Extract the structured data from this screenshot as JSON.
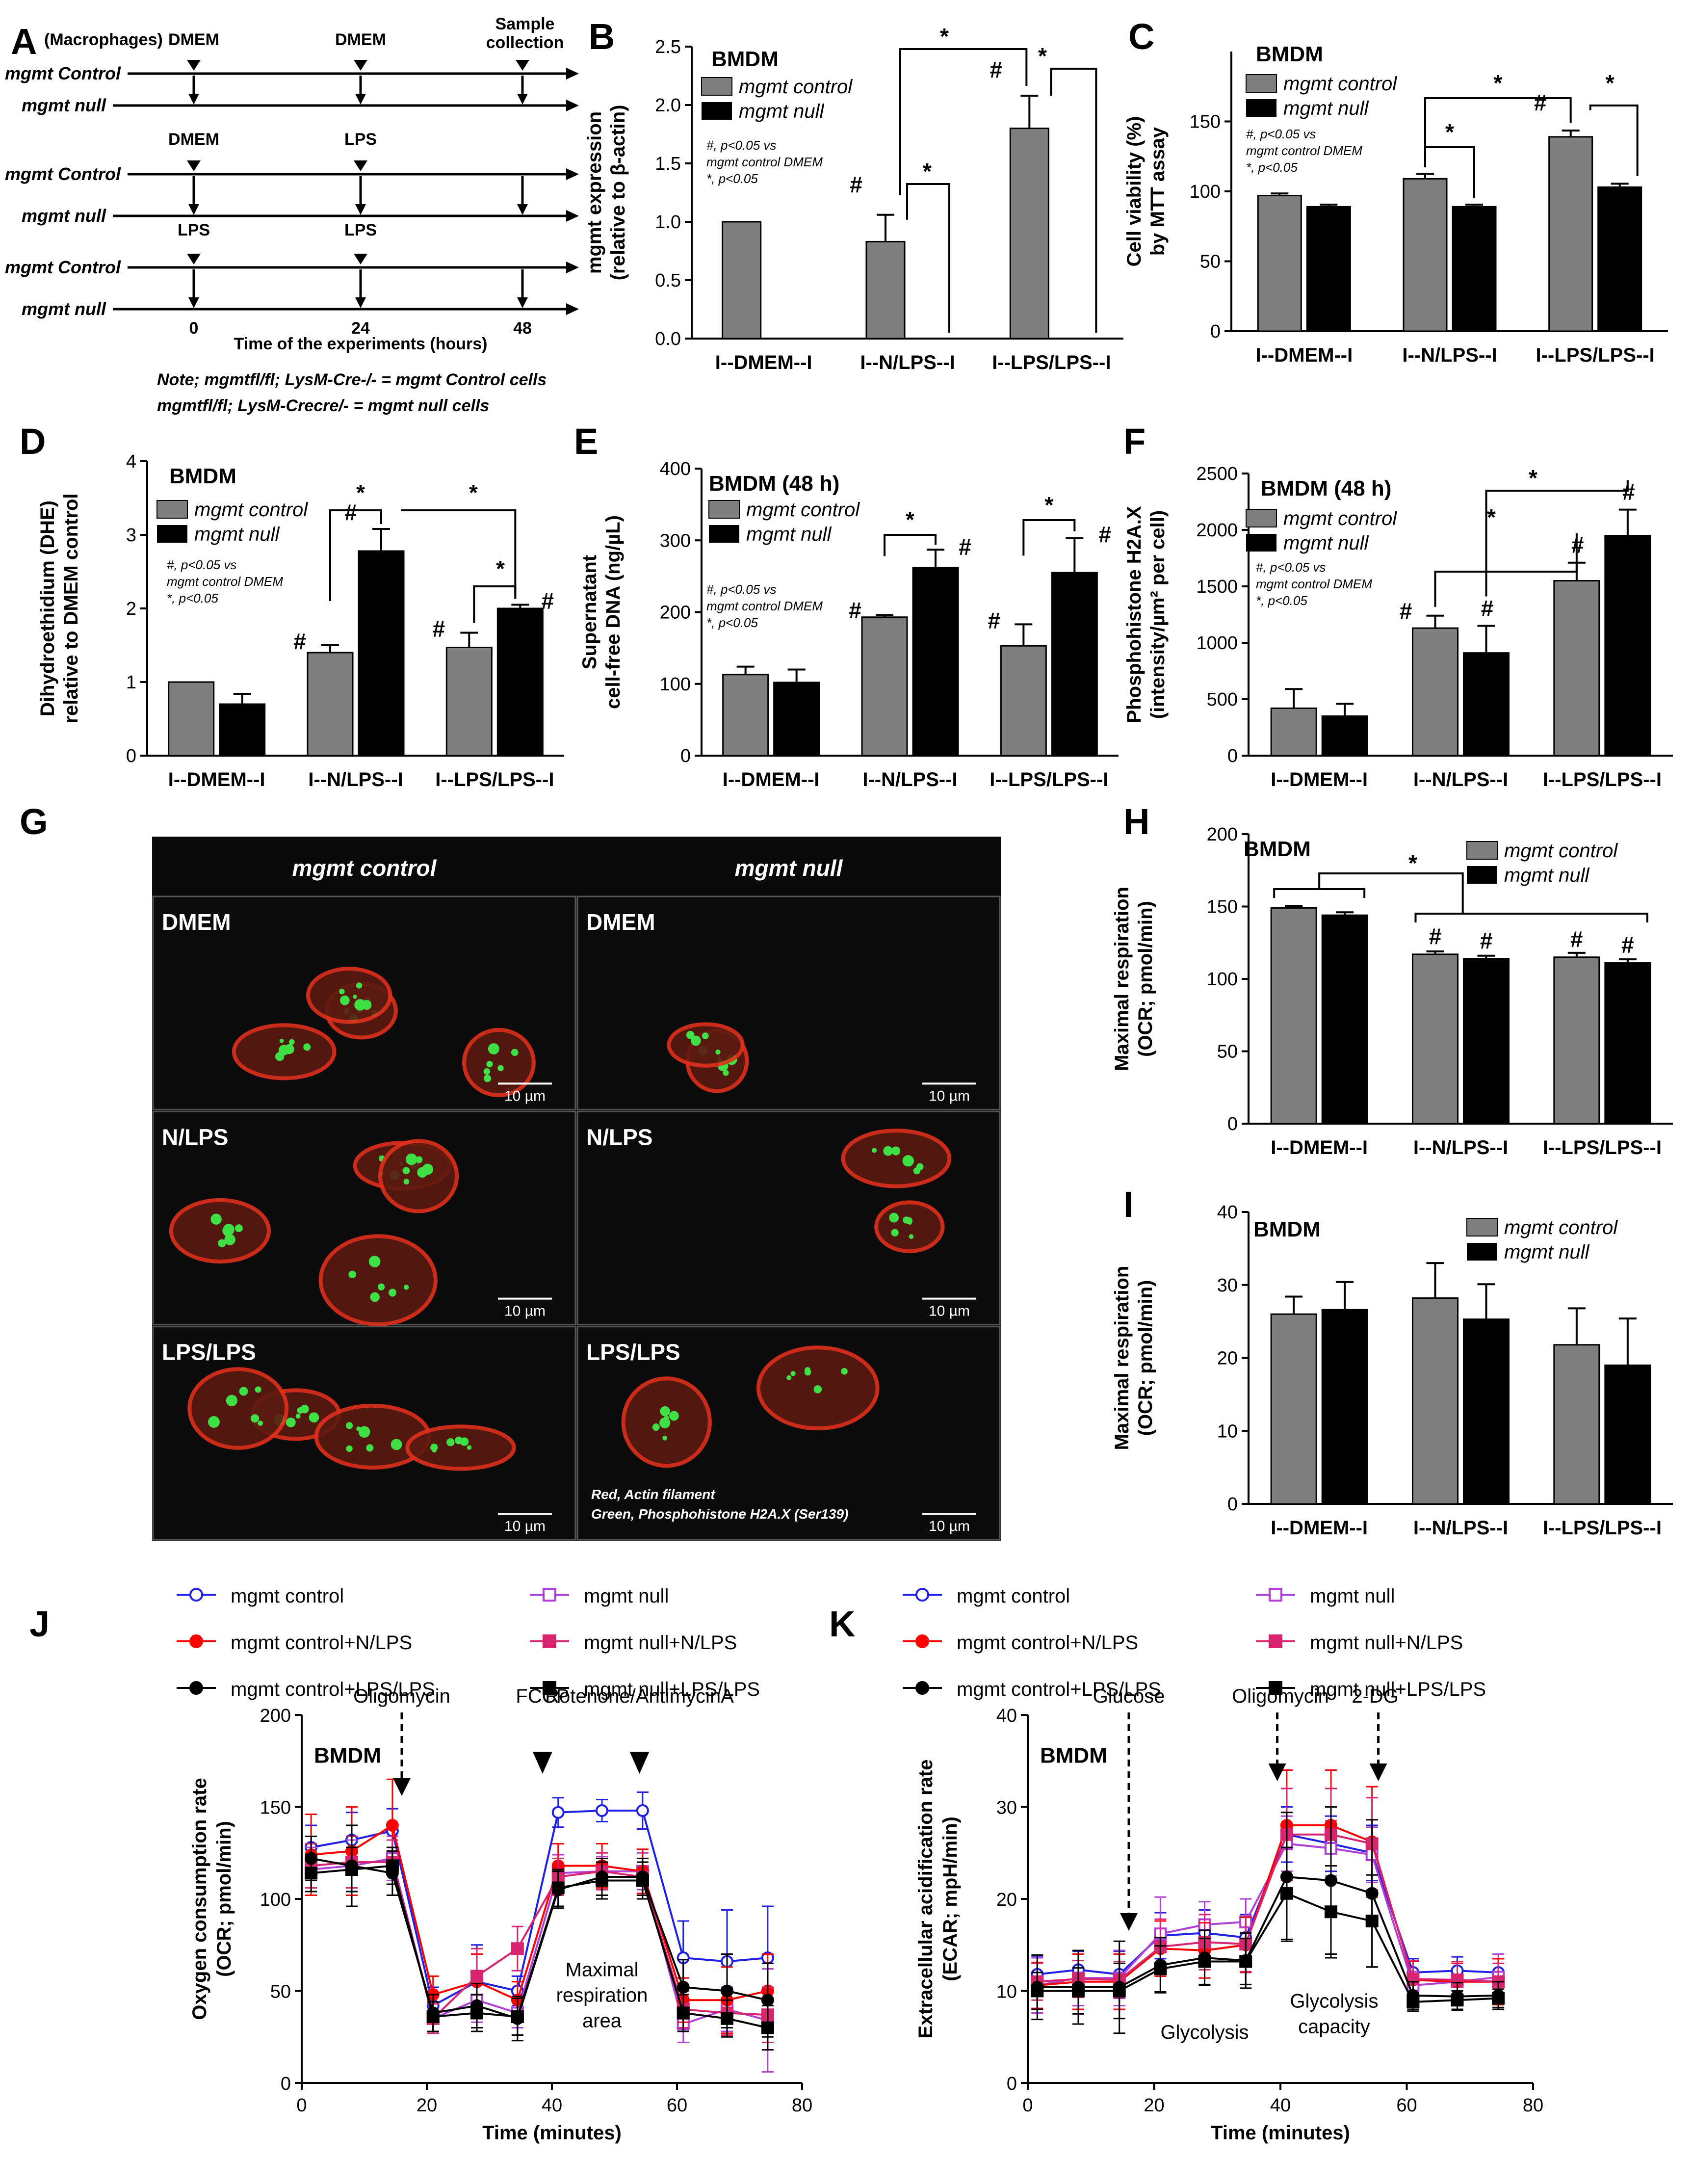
{
  "panel_letters": [
    "A",
    "B",
    "C",
    "D",
    "E",
    "F",
    "G",
    "H",
    "I",
    "J",
    "K"
  ],
  "colors": {
    "control": "#7f7f7f",
    "null": "#000000",
    "blue": "#1f1fe6",
    "red": "#ff0000",
    "purple": "#b03fd6",
    "magenta": "#d6246e",
    "black": "#000000"
  },
  "panelA": {
    "header": "(Macrophages)",
    "sample_collection": "Sample collection",
    "rows": [
      "mgmt Control",
      "mgmt null",
      "mgmt Control",
      "mgmt null",
      "mgmt Control",
      "mgmt null"
    ],
    "treat_labels": {
      "row1_0": "DMEM",
      "row1_24": "DMEM",
      "row3_0": "DMEM",
      "row3_24": "LPS",
      "row5_0": "LPS",
      "row5_24": "LPS"
    },
    "x_ticks": [
      "0",
      "24",
      "48"
    ],
    "x_label": "Time of the experiments (hours)",
    "note1": "Note; mgmtfl/fl; LysM-Cre-/- = mgmt Control cells",
    "note2": "mgmtfl/fl; LysM-Crecre/- = mgmt null cells"
  },
  "bar_categories": [
    "I--DMEM--I",
    "I--N/LPS--I",
    "I--LPS/LPS--I"
  ],
  "legend_bar": {
    "control": "mgmt control",
    "null": "mgmt null"
  },
  "stat_note": {
    "l1": "#, p<0.05 vs",
    "l2": "mgmt control DMEM",
    "l3": "*, p<0.05"
  },
  "panelG": {
    "col_headers": [
      "mgmt control",
      "mgmt null"
    ],
    "row_labels": [
      "DMEM",
      "N/LPS",
      "LPS/LPS"
    ],
    "scale_bar": "10 µm",
    "caption1": "Red, Actin filament",
    "caption2": "Green, Phosphohistone H2A.X (Ser139)"
  },
  "legend_lines": {
    "c": "mgmt control",
    "n": "mgmt null",
    "cN": "mgmt control+N/LPS",
    "nN": "mgmt null+N/LPS",
    "cL": "mgmt control+LPS/LPS",
    "nL": "mgmt null+LPS/LPS"
  },
  "panelJ_text": {
    "oligo": "Oligomycin",
    "fccp": "FCCP",
    "rot": "Rotenone/AntimycinA",
    "area1": "Maximal",
    "area2": "respiration",
    "area3": "area"
  },
  "panelK_text": {
    "glucose": "Glucose",
    "oligo": "Oligomycin",
    "dg": "2-DG",
    "glyc": "Glycolysis",
    "cap1": "Glycolysis",
    "cap2": "capacity"
  },
  "chart_data": [
    {
      "panel": "B",
      "type": "bar",
      "title": "BMDM",
      "ylabel": "mgmt expression (relative to β-actin)",
      "ylim": [
        0,
        2.5
      ],
      "yticks": [
        0,
        0.5,
        1.0,
        1.5,
        2.0,
        2.5
      ],
      "categories": [
        "I--DMEM--I",
        "I--N/LPS--I",
        "I--LPS/LPS--I"
      ],
      "series": [
        {
          "name": "mgmt control",
          "values": [
            1.0,
            0.83,
            1.8
          ],
          "errors": [
            0,
            0.23,
            0.28
          ]
        },
        {
          "name": "mgmt null",
          "values": [
            0,
            0,
            0
          ],
          "errors": [
            0,
            0,
            0
          ]
        }
      ]
    },
    {
      "panel": "C",
      "type": "bar",
      "title": "BMDM",
      "ylabel": "Cell viability (%) by MTT assay",
      "ylim": [
        0,
        200
      ],
      "yticks": [
        0,
        50,
        100,
        150
      ],
      "categories": [
        "I--DMEM--I",
        "I--N/LPS--I",
        "I--LPS/LPS--I"
      ],
      "series": [
        {
          "name": "mgmt control",
          "values": [
            97,
            109,
            139
          ],
          "errors": [
            1.5,
            3.5,
            4.5
          ]
        },
        {
          "name": "mgmt null",
          "values": [
            89,
            89,
            103
          ],
          "errors": [
            1.5,
            1.5,
            2.5
          ]
        }
      ]
    },
    {
      "panel": "D",
      "type": "bar",
      "title": "BMDM",
      "ylabel": "Dihydroethidium (DHE) relative to DMEM control",
      "ylim": [
        0,
        4
      ],
      "yticks": [
        0,
        1,
        2,
        3,
        4
      ],
      "categories": [
        "I--DMEM--I",
        "I--N/LPS--I",
        "I--LPS/LPS--I"
      ],
      "series": [
        {
          "name": "mgmt control",
          "values": [
            1.0,
            1.4,
            1.47
          ],
          "errors": [
            0,
            0.1,
            0.2
          ]
        },
        {
          "name": "mgmt null",
          "values": [
            0.7,
            2.78,
            2.0
          ],
          "errors": [
            0.14,
            0.3,
            0.05
          ]
        }
      ]
    },
    {
      "panel": "E",
      "type": "bar",
      "title": "BMDM (48 h)",
      "ylabel": "Supernatant cell-free DNA (ng/µL)",
      "ylim": [
        0,
        400
      ],
      "yticks": [
        0,
        100,
        200,
        300,
        400
      ],
      "categories": [
        "I--DMEM--I",
        "I--N/LPS--I",
        "I--LPS/LPS--I"
      ],
      "series": [
        {
          "name": "mgmt control",
          "values": [
            113,
            193,
            153
          ],
          "errors": [
            11,
            3,
            30
          ]
        },
        {
          "name": "mgmt null",
          "values": [
            102,
            262,
            255
          ],
          "errors": [
            18,
            25,
            48
          ]
        }
      ]
    },
    {
      "panel": "F",
      "type": "bar",
      "title": "BMDM (48 h)",
      "ylabel": "Phosphohistone H2A.X (intensity/µm2 per cell)",
      "ylim": [
        0,
        2500
      ],
      "yticks": [
        0,
        500,
        1000,
        1500,
        2000,
        2500
      ],
      "categories": [
        "I--DMEM--I",
        "I--N/LPS--I",
        "I--LPS/LPS--I"
      ],
      "series": [
        {
          "name": "mgmt control",
          "values": [
            420,
            1130,
            1550
          ],
          "errors": [
            170,
            110,
            160
          ]
        },
        {
          "name": "mgmt null",
          "values": [
            350,
            910,
            1950
          ],
          "errors": [
            110,
            240,
            230
          ]
        }
      ]
    },
    {
      "panel": "H",
      "type": "bar",
      "title": "BMDM",
      "ylabel": "Maximal respiration (OCR; pmol/min)",
      "ylim": [
        0,
        200
      ],
      "yticks": [
        0,
        50,
        100,
        150,
        200
      ],
      "categories": [
        "I--DMEM--I",
        "I--N/LPS--I",
        "I--LPS/LPS--I"
      ],
      "series": [
        {
          "name": "mgmt control",
          "values": [
            149,
            117,
            115
          ],
          "errors": [
            1.5,
            2,
            3
          ]
        },
        {
          "name": "mgmt null",
          "values": [
            144,
            114,
            111
          ],
          "errors": [
            2,
            2,
            2.5
          ]
        }
      ]
    },
    {
      "panel": "I",
      "type": "bar",
      "title": "BMDM",
      "ylabel": "Maximal respiration (OCR; pmol/min)",
      "ylim": [
        0,
        40
      ],
      "yticks": [
        0,
        10,
        20,
        30,
        40
      ],
      "categories": [
        "I--DMEM--I",
        "I--N/LPS--I",
        "I--LPS/LPS--I"
      ],
      "series": [
        {
          "name": "mgmt control",
          "values": [
            26,
            28.2,
            21.8
          ],
          "errors": [
            2.4,
            4.8,
            5
          ]
        },
        {
          "name": "mgmt null",
          "values": [
            26.6,
            25.3,
            19
          ],
          "errors": [
            3.8,
            4.8,
            6.4
          ]
        }
      ]
    },
    {
      "panel": "J",
      "type": "line",
      "title": "BMDM",
      "xlabel": "Time (minutes)",
      "ylabel": "Oxygen consumption rate (OCR; pmol/min)",
      "xlim": [
        0,
        80
      ],
      "ylim": [
        0,
        200
      ],
      "xticks": [
        0,
        20,
        40,
        60,
        80
      ],
      "yticks": [
        0,
        50,
        100,
        150,
        200
      ],
      "x": [
        1.5,
        8,
        14.5,
        21,
        28,
        34.5,
        41,
        48,
        54.5,
        61,
        68,
        74.5
      ],
      "series": [
        {
          "name": "mgmt control",
          "values": [
            128,
            132,
            137,
            42,
            55,
            50,
            147,
            148,
            148,
            68,
            66,
            68
          ],
          "errors": [
            12,
            15,
            12,
            10,
            20,
            8,
            8,
            6,
            10,
            20,
            28,
            28
          ]
        },
        {
          "name": "mgmt null",
          "values": [
            116,
            118,
            122,
            35,
            45,
            38,
            114,
            115,
            115,
            32,
            40,
            34
          ],
          "errors": [
            12,
            14,
            12,
            8,
            12,
            8,
            10,
            8,
            10,
            10,
            12,
            28
          ]
        },
        {
          "name": "mgmt control+N/LPS",
          "values": [
            124,
            126,
            140,
            48,
            55,
            45,
            118,
            118,
            115,
            45,
            45,
            50
          ],
          "errors": [
            22,
            24,
            25,
            10,
            15,
            10,
            12,
            12,
            12,
            12,
            18,
            20
          ]
        },
        {
          "name": "mgmt null+N/LPS",
          "values": [
            118,
            120,
            120,
            35,
            58,
            73,
            112,
            115,
            112,
            40,
            38,
            37
          ],
          "errors": [
            12,
            14,
            12,
            8,
            15,
            12,
            10,
            10,
            10,
            10,
            12,
            15
          ]
        },
        {
          "name": "mgmt control+LPS/LPS",
          "values": [
            122,
            118,
            114,
            38,
            42,
            35,
            105,
            112,
            112,
            52,
            50,
            45
          ],
          "errors": [
            12,
            22,
            12,
            10,
            12,
            12,
            10,
            10,
            10,
            15,
            20,
            20
          ]
        },
        {
          "name": "mgmt null+LPS/LPS",
          "values": [
            114,
            116,
            118,
            36,
            38,
            36,
            106,
            110,
            110,
            38,
            35,
            30
          ],
          "errors": [
            10,
            12,
            10,
            8,
            10,
            10,
            10,
            10,
            10,
            10,
            10,
            12
          ]
        }
      ]
    },
    {
      "panel": "K",
      "type": "line",
      "title": "BMDM",
      "xlabel": "Time (minutes)",
      "ylabel": "Extracellular acidification rate (ECAR; mpH/min)",
      "xlim": [
        0,
        80
      ],
      "ylim": [
        0,
        40
      ],
      "xticks": [
        0,
        20,
        40,
        60,
        80
      ],
      "yticks": [
        0,
        10,
        20,
        30,
        40
      ],
      "x": [
        1.5,
        8,
        14.5,
        21,
        28,
        34.5,
        41,
        48,
        54.5,
        61,
        68,
        74.5
      ],
      "series": [
        {
          "name": "mgmt control",
          "values": [
            11.8,
            12.3,
            11.8,
            16,
            16.3,
            15.8,
            27,
            26,
            25,
            12,
            12.2,
            12
          ],
          "errors": [
            2,
            2,
            2.5,
            2.5,
            2.5,
            2.5,
            3,
            3,
            3,
            1.5,
            1.5,
            1.5
          ]
        },
        {
          "name": "mgmt null",
          "values": [
            10.6,
            11.4,
            11.4,
            16.2,
            17.2,
            17.5,
            26,
            25.5,
            24.8,
            10.6,
            11,
            11.5
          ],
          "errors": [
            3,
            3,
            3,
            4,
            2.5,
            2.5,
            3,
            3,
            3,
            1.5,
            2,
            2.5
          ]
        },
        {
          "name": "mgmt control+N/LPS",
          "values": [
            10.6,
            11,
            11,
            14.6,
            14.4,
            15,
            28,
            28,
            26.2,
            11.2,
            11,
            11
          ],
          "errors": [
            2.5,
            3,
            3,
            3,
            3,
            3,
            6,
            6,
            6,
            2,
            2,
            2.5
          ]
        },
        {
          "name": "mgmt null+N/LPS",
          "values": [
            11,
            11.3,
            11.2,
            14.8,
            15.3,
            15.1,
            27,
            27,
            26,
            11.3,
            11.2,
            11
          ],
          "errors": [
            2,
            2,
            2,
            3,
            3,
            3,
            5,
            5,
            5,
            2,
            2,
            2
          ]
        },
        {
          "name": "mgmt control+LPS/LPS",
          "values": [
            10.4,
            10.4,
            10.4,
            12.8,
            13.6,
            13.3,
            22.4,
            22,
            20.6,
            9.5,
            9.4,
            9.5
          ],
          "errors": [
            3.5,
            4,
            5,
            3,
            3,
            3,
            7,
            8,
            8,
            1.5,
            1.5,
            1.5
          ]
        },
        {
          "name": "mgmt null+LPS/LPS",
          "values": [
            10,
            10,
            10,
            12.4,
            13.2,
            13.2,
            20.6,
            18.6,
            17.6,
            8.8,
            9,
            9.2
          ],
          "errors": [
            2,
            2.5,
            3,
            2.5,
            2.5,
            2.5,
            5,
            5,
            5,
            1,
            1,
            1
          ]
        }
      ]
    }
  ]
}
